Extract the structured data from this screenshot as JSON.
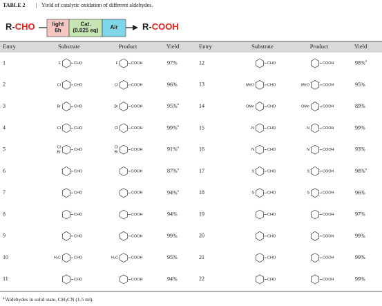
{
  "header": {
    "table_label": "TABLE 2",
    "caption": "Yield of catalytic oxidation of different aldehydes."
  },
  "scheme": {
    "reactant_r": "R-",
    "reactant_group": "CHO",
    "product_r": "R-",
    "product_group": "COOH",
    "conditions": [
      [
        "light",
        "6h"
      ],
      [
        "Cat.",
        "(0.025 eq)"
      ],
      [
        "Air"
      ]
    ]
  },
  "table": {
    "columns": [
      "Entry",
      "Substrate",
      "Product",
      "Yield",
      "Entry",
      "Substrate",
      "Product",
      "Yield"
    ],
    "rows": [
      [
        {
          "entry": "1",
          "substrate": [
            "F",
            "CHO"
          ],
          "product": [
            "F",
            "COOH"
          ],
          "yield": "97%"
        },
        {
          "entry": "12",
          "substrate": [
            "CHO"
          ],
          "product": [
            "COOH"
          ],
          "yield": "98%",
          "note": "a"
        }
      ],
      [
        {
          "entry": "2",
          "substrate": [
            "Cl",
            "CHO"
          ],
          "product": [
            "Cl",
            "COOH"
          ],
          "yield": "96%"
        },
        {
          "entry": "13",
          "substrate": [
            "MeO",
            "CHO"
          ],
          "product": [
            "MeO",
            "COOH"
          ],
          "yield": "95%"
        }
      ],
      [
        {
          "entry": "3",
          "substrate": [
            "Br",
            "CHO"
          ],
          "product": [
            "Br",
            "COOH"
          ],
          "yield": "95%",
          "note": "a"
        },
        {
          "entry": "14",
          "substrate": [
            "OMe",
            "CHO"
          ],
          "product": [
            "OMe",
            "COOH"
          ],
          "yield": "89%"
        }
      ],
      [
        {
          "entry": "4",
          "substrate": [
            "Cl",
            "CHO"
          ],
          "product": [
            "Cl",
            "COOH"
          ],
          "yield": "99%",
          "note": "a"
        },
        {
          "entry": "15",
          "substrate": [
            "N",
            "CHO"
          ],
          "product": [
            "N",
            "COOH"
          ],
          "yield": "99%"
        }
      ],
      [
        {
          "entry": "5",
          "substrate": [
            "Cl",
            "Br",
            "CHO"
          ],
          "product": [
            "Cl",
            "Br",
            "COOH"
          ],
          "yield": "91%",
          "note": "a"
        },
        {
          "entry": "16",
          "substrate": [
            "N",
            "CHO"
          ],
          "product": [
            "N",
            "COOH"
          ],
          "yield": "93%"
        }
      ],
      [
        {
          "entry": "6",
          "substrate": [
            "CHO"
          ],
          "product": [
            "COOH"
          ],
          "yield": "87%",
          "note": "a"
        },
        {
          "entry": "17",
          "substrate": [
            "S",
            "CHO"
          ],
          "product": [
            "S",
            "COOH"
          ],
          "yield": "98%",
          "note": "a"
        }
      ],
      [
        {
          "entry": "7",
          "substrate": [
            "CHO"
          ],
          "product": [
            "COOH"
          ],
          "yield": "94%",
          "note": "a"
        },
        {
          "entry": "18",
          "substrate": [
            "S",
            "CHO"
          ],
          "product": [
            "S",
            "COOH"
          ],
          "yield": "96%"
        }
      ],
      [
        {
          "entry": "8",
          "substrate": [
            "CHO"
          ],
          "product": [
            "COOH"
          ],
          "yield": "94%"
        },
        {
          "entry": "19",
          "substrate": [
            "CHO"
          ],
          "product": [
            "COOH"
          ],
          "yield": "97%"
        }
      ],
      [
        {
          "entry": "9",
          "substrate": [
            "CHO"
          ],
          "product": [
            "COOH"
          ],
          "yield": "99%"
        },
        {
          "entry": "20",
          "substrate": [
            "CHO"
          ],
          "product": [
            "COOH"
          ],
          "yield": "99%"
        }
      ],
      [
        {
          "entry": "10",
          "substrate": [
            "H₃C",
            "CHO"
          ],
          "product": [
            "H₃C",
            "COOH"
          ],
          "yield": "95%"
        },
        {
          "entry": "21",
          "substrate": [
            "CHO"
          ],
          "product": [
            "COOH"
          ],
          "yield": "99%"
        }
      ],
      [
        {
          "entry": "11",
          "substrate": [
            "CHO"
          ],
          "product": [
            "COOH"
          ],
          "yield": "94%"
        },
        {
          "entry": "22",
          "substrate": [
            "CHO"
          ],
          "product": [
            "COOH"
          ],
          "yield": "99%"
        }
      ]
    ]
  },
  "footnote": {
    "mark": "a)",
    "text": "Aldehydes in solid state, CH",
    "sub": "3",
    "rest": "CN (1.5 ml)."
  }
}
